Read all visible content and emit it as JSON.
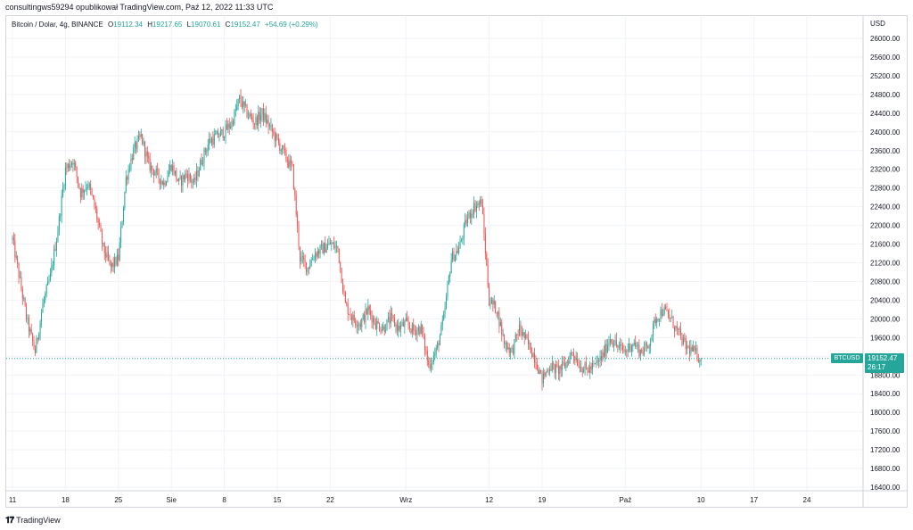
{
  "header": {
    "publisher_line": "consultingws59294 opublikował TradingView.com, Paź 12, 2022 11:33 UTC"
  },
  "legend": {
    "symbol_line": "Bitcoin / Dolar, 4g, BINANCE",
    "o_label": "O",
    "o_value": "19112.34",
    "h_label": "H",
    "h_value": "19217.65",
    "l_label": "L",
    "l_value": "19070.61",
    "c_label": "C",
    "c_value": "19152.47",
    "change": "+54.69 (+0.29%)"
  },
  "price_tag": {
    "symbol": "BTCUSD",
    "price": "19152.47",
    "countdown": "26:17"
  },
  "footer": {
    "logo_text": "TradingView"
  },
  "colors": {
    "up": "#26a69a",
    "down": "#ef5350",
    "grid": "#f0f3fa",
    "border": "#d1d4dc"
  },
  "chart_data": {
    "type": "candlestick",
    "currency_label": "USD",
    "ylim": [
      16000,
      26400
    ],
    "y_ticks": [
      "26000.00",
      "25600.00",
      "25200.00",
      "24800.00",
      "24400.00",
      "24000.00",
      "23600.00",
      "23200.00",
      "22800.00",
      "22400.00",
      "22000.00",
      "21600.00",
      "21200.00",
      "20800.00",
      "20400.00",
      "20000.00",
      "19600.00",
      "19200.00",
      "18800.00",
      "18400.00",
      "18000.00",
      "17600.00",
      "17200.00",
      "16800.00",
      "16400.00"
    ],
    "x_ticks": [
      "11",
      "18",
      "25",
      "Sie",
      "8",
      "15",
      "22",
      "Wrz",
      "12",
      "19",
      "Paź",
      "10",
      "17",
      "24"
    ],
    "x_tick_days": [
      0,
      7,
      14,
      21,
      28,
      35,
      42,
      52,
      63,
      70,
      81,
      91,
      98,
      105
    ],
    "start_label": "11",
    "current_price": 19152.47,
    "close_path": [
      [
        0,
        21700
      ],
      [
        1,
        20800
      ],
      [
        2,
        19900
      ],
      [
        3,
        19300
      ],
      [
        4,
        20300
      ],
      [
        5,
        20900
      ],
      [
        6,
        21900
      ],
      [
        7,
        23200
      ],
      [
        8,
        23400
      ],
      [
        9,
        22700
      ],
      [
        10,
        22900
      ],
      [
        11,
        22300
      ],
      [
        12,
        21500
      ],
      [
        13,
        21100
      ],
      [
        14,
        21300
      ],
      [
        15,
        23000
      ],
      [
        16,
        23600
      ],
      [
        17,
        23900
      ],
      [
        18,
        23300
      ],
      [
        19,
        23100
      ],
      [
        20,
        22900
      ],
      [
        21,
        23300
      ],
      [
        22,
        22900
      ],
      [
        23,
        23100
      ],
      [
        24,
        22900
      ],
      [
        25,
        23400
      ],
      [
        26,
        23800
      ],
      [
        27,
        23900
      ],
      [
        28,
        24000
      ],
      [
        29,
        24200
      ],
      [
        30,
        24700
      ],
      [
        31,
        24400
      ],
      [
        32,
        24200
      ],
      [
        33,
        24400
      ],
      [
        34,
        24100
      ],
      [
        35,
        23800
      ],
      [
        36,
        23500
      ],
      [
        37,
        23200
      ],
      [
        38,
        21300
      ],
      [
        39,
        21100
      ],
      [
        40,
        21400
      ],
      [
        41,
        21500
      ],
      [
        42,
        21600
      ],
      [
        43,
        21500
      ],
      [
        44,
        20300
      ],
      [
        45,
        20000
      ],
      [
        46,
        19900
      ],
      [
        47,
        20200
      ],
      [
        48,
        19900
      ],
      [
        49,
        19800
      ],
      [
        50,
        20000
      ],
      [
        51,
        19800
      ],
      [
        52,
        19900
      ],
      [
        53,
        19750
      ],
      [
        54,
        19800
      ],
      [
        55,
        19000
      ],
      [
        56,
        19300
      ],
      [
        57,
        20000
      ],
      [
        58,
        21300
      ],
      [
        59,
        21500
      ],
      [
        60,
        22100
      ],
      [
        61,
        22400
      ],
      [
        62,
        22500
      ],
      [
        63,
        20400
      ],
      [
        64,
        20200
      ],
      [
        65,
        19500
      ],
      [
        66,
        19300
      ],
      [
        67,
        19800
      ],
      [
        68,
        19500
      ],
      [
        69,
        19200
      ],
      [
        70,
        18700
      ],
      [
        71,
        19000
      ],
      [
        72,
        18900
      ],
      [
        73,
        19000
      ],
      [
        74,
        19300
      ],
      [
        75,
        19000
      ],
      [
        76,
        18900
      ],
      [
        77,
        19000
      ],
      [
        78,
        19200
      ],
      [
        79,
        19600
      ],
      [
        80,
        19400
      ],
      [
        81,
        19300
      ],
      [
        82,
        19500
      ],
      [
        83,
        19300
      ],
      [
        84,
        19400
      ],
      [
        85,
        20000
      ],
      [
        86,
        20200
      ],
      [
        87,
        20000
      ],
      [
        88,
        19700
      ],
      [
        89,
        19400
      ],
      [
        90,
        19300
      ],
      [
        91,
        19152.47
      ]
    ]
  }
}
